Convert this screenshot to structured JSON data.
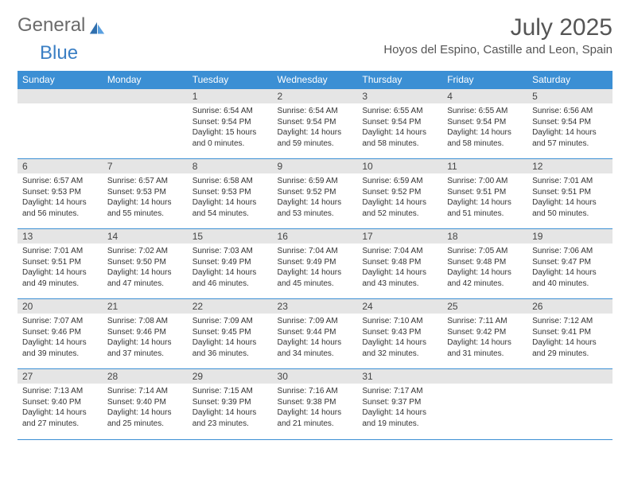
{
  "brand": {
    "part1": "General",
    "part2": "Blue"
  },
  "title": "July 2025",
  "location": "Hoyos del Espino, Castille and Leon, Spain",
  "colors": {
    "header_bg": "#3b8fd4",
    "header_text": "#ffffff",
    "daynum_bg": "#e5e5e5",
    "text": "#333333",
    "brand_gray": "#6b6b6b",
    "brand_blue": "#3b7fc4"
  },
  "day_headers": [
    "Sunday",
    "Monday",
    "Tuesday",
    "Wednesday",
    "Thursday",
    "Friday",
    "Saturday"
  ],
  "weeks": [
    [
      null,
      null,
      {
        "n": "1",
        "sr": "6:54 AM",
        "ss": "9:54 PM",
        "dl": "15 hours and 0 minutes."
      },
      {
        "n": "2",
        "sr": "6:54 AM",
        "ss": "9:54 PM",
        "dl": "14 hours and 59 minutes."
      },
      {
        "n": "3",
        "sr": "6:55 AM",
        "ss": "9:54 PM",
        "dl": "14 hours and 58 minutes."
      },
      {
        "n": "4",
        "sr": "6:55 AM",
        "ss": "9:54 PM",
        "dl": "14 hours and 58 minutes."
      },
      {
        "n": "5",
        "sr": "6:56 AM",
        "ss": "9:54 PM",
        "dl": "14 hours and 57 minutes."
      }
    ],
    [
      {
        "n": "6",
        "sr": "6:57 AM",
        "ss": "9:53 PM",
        "dl": "14 hours and 56 minutes."
      },
      {
        "n": "7",
        "sr": "6:57 AM",
        "ss": "9:53 PM",
        "dl": "14 hours and 55 minutes."
      },
      {
        "n": "8",
        "sr": "6:58 AM",
        "ss": "9:53 PM",
        "dl": "14 hours and 54 minutes."
      },
      {
        "n": "9",
        "sr": "6:59 AM",
        "ss": "9:52 PM",
        "dl": "14 hours and 53 minutes."
      },
      {
        "n": "10",
        "sr": "6:59 AM",
        "ss": "9:52 PM",
        "dl": "14 hours and 52 minutes."
      },
      {
        "n": "11",
        "sr": "7:00 AM",
        "ss": "9:51 PM",
        "dl": "14 hours and 51 minutes."
      },
      {
        "n": "12",
        "sr": "7:01 AM",
        "ss": "9:51 PM",
        "dl": "14 hours and 50 minutes."
      }
    ],
    [
      {
        "n": "13",
        "sr": "7:01 AM",
        "ss": "9:51 PM",
        "dl": "14 hours and 49 minutes."
      },
      {
        "n": "14",
        "sr": "7:02 AM",
        "ss": "9:50 PM",
        "dl": "14 hours and 47 minutes."
      },
      {
        "n": "15",
        "sr": "7:03 AM",
        "ss": "9:49 PM",
        "dl": "14 hours and 46 minutes."
      },
      {
        "n": "16",
        "sr": "7:04 AM",
        "ss": "9:49 PM",
        "dl": "14 hours and 45 minutes."
      },
      {
        "n": "17",
        "sr": "7:04 AM",
        "ss": "9:48 PM",
        "dl": "14 hours and 43 minutes."
      },
      {
        "n": "18",
        "sr": "7:05 AM",
        "ss": "9:48 PM",
        "dl": "14 hours and 42 minutes."
      },
      {
        "n": "19",
        "sr": "7:06 AM",
        "ss": "9:47 PM",
        "dl": "14 hours and 40 minutes."
      }
    ],
    [
      {
        "n": "20",
        "sr": "7:07 AM",
        "ss": "9:46 PM",
        "dl": "14 hours and 39 minutes."
      },
      {
        "n": "21",
        "sr": "7:08 AM",
        "ss": "9:46 PM",
        "dl": "14 hours and 37 minutes."
      },
      {
        "n": "22",
        "sr": "7:09 AM",
        "ss": "9:45 PM",
        "dl": "14 hours and 36 minutes."
      },
      {
        "n": "23",
        "sr": "7:09 AM",
        "ss": "9:44 PM",
        "dl": "14 hours and 34 minutes."
      },
      {
        "n": "24",
        "sr": "7:10 AM",
        "ss": "9:43 PM",
        "dl": "14 hours and 32 minutes."
      },
      {
        "n": "25",
        "sr": "7:11 AM",
        "ss": "9:42 PM",
        "dl": "14 hours and 31 minutes."
      },
      {
        "n": "26",
        "sr": "7:12 AM",
        "ss": "9:41 PM",
        "dl": "14 hours and 29 minutes."
      }
    ],
    [
      {
        "n": "27",
        "sr": "7:13 AM",
        "ss": "9:40 PM",
        "dl": "14 hours and 27 minutes."
      },
      {
        "n": "28",
        "sr": "7:14 AM",
        "ss": "9:40 PM",
        "dl": "14 hours and 25 minutes."
      },
      {
        "n": "29",
        "sr": "7:15 AM",
        "ss": "9:39 PM",
        "dl": "14 hours and 23 minutes."
      },
      {
        "n": "30",
        "sr": "7:16 AM",
        "ss": "9:38 PM",
        "dl": "14 hours and 21 minutes."
      },
      {
        "n": "31",
        "sr": "7:17 AM",
        "ss": "9:37 PM",
        "dl": "14 hours and 19 minutes."
      },
      null,
      null
    ]
  ],
  "labels": {
    "sunrise": "Sunrise: ",
    "sunset": "Sunset: ",
    "daylight": "Daylight: "
  }
}
